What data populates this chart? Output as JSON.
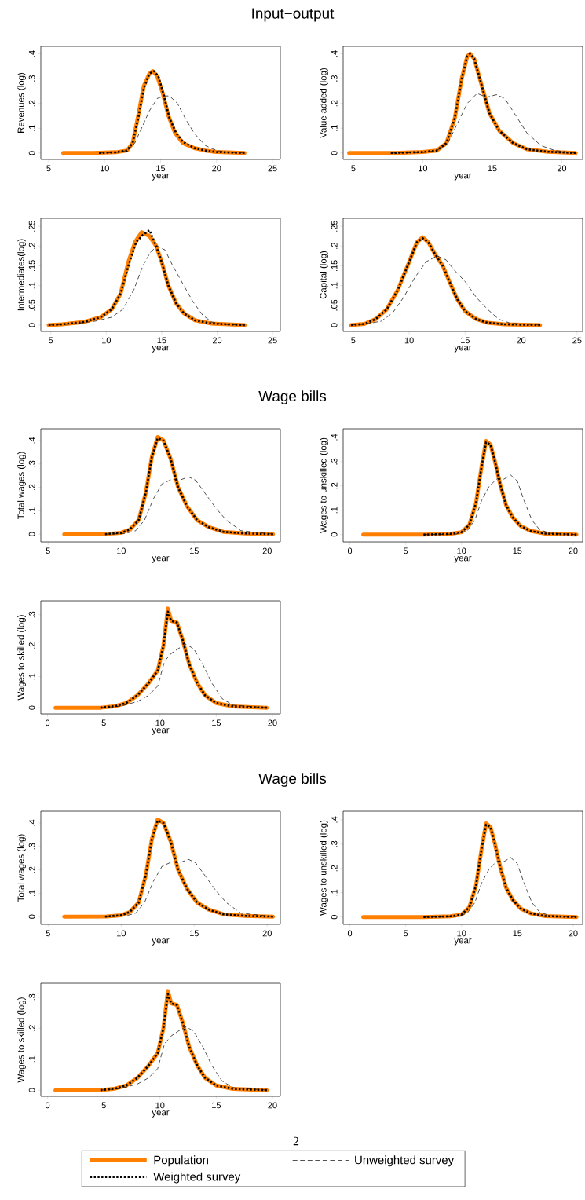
{
  "chart_data": [
    {
      "type": "line",
      "title": "Input−output",
      "xlabel": "year",
      "ylabel": "Revenues (log)",
      "xlim": [
        4.3,
        25.7
      ],
      "ylim": [
        -0.026,
        0.43
      ],
      "xticks": [
        5,
        10,
        15,
        20,
        25
      ],
      "yticks": [
        0,
        {
          "value": 0.1,
          "label": ".1"
        },
        {
          "value": 0.2,
          "label": ".2"
        },
        {
          "value": 0.3,
          "label": ".3"
        },
        {
          "value": 0.4,
          "label": ".4"
        }
      ],
      "series": [
        {
          "color": "#ff7f00",
          "line_style": "solid",
          "x": [
            6.3,
            9,
            11,
            12,
            12.5,
            13,
            13.5,
            14,
            14.3,
            14.7,
            15.2,
            15.7,
            16.3,
            17,
            18,
            19,
            20,
            22.5
          ],
          "values": [
            0,
            0,
            0.003,
            0.01,
            0.04,
            0.15,
            0.27,
            0.32,
            0.33,
            0.31,
            0.24,
            0.15,
            0.08,
            0.04,
            0.02,
            0.01,
            0.004,
            0
          ]
        },
        {
          "color": "#000000",
          "line_style": "dotted",
          "x": [
            9.5,
            11,
            12,
            12.5,
            13,
            13.5,
            14,
            14.4,
            14.8,
            15.3,
            15.8,
            16.4,
            17,
            18,
            19,
            20,
            22.5
          ],
          "values": [
            0,
            0.003,
            0.01,
            0.04,
            0.14,
            0.26,
            0.32,
            0.33,
            0.31,
            0.23,
            0.14,
            0.08,
            0.045,
            0.02,
            0.01,
            0.004,
            0
          ]
        },
        {
          "color": "#000000",
          "line_style": "dashed",
          "x": [
            9.5,
            11,
            12,
            12.7,
            13.3,
            14,
            14.7,
            15.3,
            15.8,
            16.5,
            17.2,
            18,
            19,
            20,
            21,
            22.5
          ],
          "values": [
            0,
            0.002,
            0.01,
            0.04,
            0.1,
            0.17,
            0.22,
            0.23,
            0.23,
            0.2,
            0.14,
            0.08,
            0.03,
            0.01,
            0.003,
            0
          ]
        }
      ]
    },
    {
      "type": "line",
      "xlabel": "year",
      "ylabel": "Value added (log)",
      "xlim": [
        4.27,
        21.5
      ],
      "ylim": [
        -0.026,
        0.43
      ],
      "xticks": [
        5,
        10,
        15,
        20
      ],
      "yticks": [
        0,
        {
          "value": 0.1,
          "label": ".1"
        },
        {
          "value": 0.2,
          "label": ".2"
        },
        {
          "value": 0.3,
          "label": ".3"
        },
        {
          "value": 0.4,
          "label": ".4"
        }
      ],
      "series": [
        {
          "color": "#ff7f00",
          "line_style": "solid",
          "x": [
            4.7,
            8,
            10,
            11,
            11.7,
            12.3,
            12.8,
            13.2,
            13.4,
            13.7,
            14.2,
            14.8,
            15.5,
            16.5,
            17.5,
            19,
            21
          ],
          "values": [
            0,
            0,
            0.004,
            0.01,
            0.04,
            0.14,
            0.3,
            0.39,
            0.4,
            0.38,
            0.28,
            0.16,
            0.09,
            0.04,
            0.015,
            0.005,
            0
          ]
        },
        {
          "color": "#000000",
          "line_style": "dotted",
          "x": [
            7.7,
            10,
            11,
            11.7,
            12.3,
            12.8,
            13.2,
            13.4,
            13.7,
            14.2,
            14.8,
            15.5,
            16.5,
            17.5,
            19,
            21
          ],
          "values": [
            0,
            0.004,
            0.01,
            0.04,
            0.14,
            0.3,
            0.39,
            0.4,
            0.38,
            0.28,
            0.16,
            0.09,
            0.04,
            0.015,
            0.005,
            0
          ]
        },
        {
          "color": "#000000",
          "line_style": "dashed",
          "x": [
            7.7,
            10,
            11,
            11.8,
            12.5,
            13.2,
            13.9,
            14.6,
            15.3,
            15.9,
            16.7,
            17.5,
            18.5,
            19.5,
            21
          ],
          "values": [
            0,
            0.002,
            0.01,
            0.04,
            0.12,
            0.2,
            0.24,
            0.225,
            0.235,
            0.22,
            0.15,
            0.08,
            0.03,
            0.01,
            0
          ]
        }
      ]
    },
    {
      "type": "line",
      "xlabel": "year",
      "ylabel": "Intermediates(log)",
      "xlim": [
        4.1,
        25.7
      ],
      "ylim": [
        -0.016,
        0.27
      ],
      "xticks": [
        5,
        10,
        15,
        20,
        25
      ],
      "yticks": [
        0,
        {
          "value": 0.05,
          "label": ".05"
        },
        {
          "value": 0.1,
          "label": ".1"
        },
        {
          "value": 0.15,
          "label": ".15"
        },
        {
          "value": 0.2,
          "label": ".2"
        },
        {
          "value": 0.25,
          "label": ".25"
        }
      ],
      "series": [
        {
          "color": "#ff7f00",
          "line_style": "solid",
          "x": [
            4.8,
            6,
            8,
            9.5,
            10.5,
            11.3,
            12,
            12.6,
            13.2,
            13.9,
            14.5,
            15,
            15.6,
            16.3,
            17,
            18,
            19.5,
            22.5
          ],
          "values": [
            0,
            0.002,
            0.008,
            0.02,
            0.04,
            0.08,
            0.16,
            0.21,
            0.235,
            0.225,
            0.2,
            0.16,
            0.1,
            0.055,
            0.03,
            0.012,
            0.004,
            0
          ]
        },
        {
          "color": "#000000",
          "line_style": "dotted",
          "x": [
            4.8,
            6,
            8,
            9.5,
            10.5,
            11.3,
            12,
            12.7,
            13.3,
            13.9,
            14.5,
            15,
            15.6,
            16.3,
            17,
            18,
            19.5,
            22.5
          ],
          "values": [
            0,
            0.002,
            0.008,
            0.02,
            0.04,
            0.08,
            0.15,
            0.21,
            0.228,
            0.24,
            0.2,
            0.16,
            0.1,
            0.055,
            0.03,
            0.012,
            0.004,
            0
          ]
        },
        {
          "color": "#000000",
          "line_style": "dashed",
          "x": [
            4.8,
            7,
            9,
            10.5,
            11.5,
            12.5,
            13.3,
            14,
            14.6,
            15.3,
            16,
            17,
            17.8,
            18.7,
            19.5,
            20.5,
            22.5
          ],
          "values": [
            0,
            0.003,
            0.01,
            0.02,
            0.04,
            0.09,
            0.15,
            0.185,
            0.2,
            0.19,
            0.15,
            0.1,
            0.06,
            0.025,
            0.008,
            0.002,
            0
          ]
        }
      ]
    },
    {
      "type": "line",
      "xlabel": "year",
      "ylabel": "Capital (log)",
      "xlim": [
        4.1,
        25.5
      ],
      "ylim": [
        -0.016,
        0.27
      ],
      "xticks": [
        5,
        10,
        15,
        20,
        25
      ],
      "yticks": [
        0,
        {
          "value": 0.05,
          "label": ".05"
        },
        {
          "value": 0.1,
          "label": ".1"
        },
        {
          "value": 0.15,
          "label": ".15"
        },
        {
          "value": 0.2,
          "label": ".2"
        },
        {
          "value": 0.25,
          "label": ".25"
        }
      ],
      "series": [
        {
          "color": "#ff7f00",
          "line_style": "solid",
          "x": [
            4.8,
            6,
            7,
            8,
            9,
            10,
            10.7,
            11.2,
            11.7,
            12.3,
            13,
            13.6,
            14.3,
            15,
            16,
            17,
            18.5,
            21.7
          ],
          "values": [
            0,
            0.003,
            0.015,
            0.04,
            0.09,
            0.16,
            0.21,
            0.222,
            0.21,
            0.18,
            0.15,
            0.11,
            0.065,
            0.035,
            0.015,
            0.006,
            0.002,
            0
          ]
        },
        {
          "color": "#000000",
          "line_style": "dotted",
          "x": [
            4.8,
            6,
            7,
            8,
            9,
            10,
            10.7,
            11.2,
            11.7,
            12.3,
            13,
            13.6,
            14.3,
            15,
            16,
            17,
            18.5,
            21.7
          ],
          "values": [
            0,
            0.003,
            0.015,
            0.04,
            0.09,
            0.16,
            0.21,
            0.22,
            0.21,
            0.18,
            0.15,
            0.11,
            0.065,
            0.035,
            0.015,
            0.006,
            0.002,
            0
          ]
        },
        {
          "color": "#000000",
          "line_style": "dashed",
          "x": [
            4.8,
            6,
            7.5,
            8.5,
            9.5,
            10.5,
            11.5,
            12.5,
            13.3,
            14,
            15,
            16,
            17,
            18,
            19,
            21.7
          ],
          "values": [
            0,
            0.002,
            0.01,
            0.03,
            0.07,
            0.12,
            0.16,
            0.175,
            0.165,
            0.14,
            0.11,
            0.07,
            0.04,
            0.015,
            0.005,
            0
          ]
        }
      ]
    },
    {
      "type": "line",
      "title": "Wage bills",
      "xlabel": "year",
      "ylabel": "Total wages (log)",
      "xlim": [
        4.5,
        20.9
      ],
      "ylim": [
        -0.033,
        0.45
      ],
      "xticks": [
        5,
        10,
        15,
        20
      ],
      "yticks": [
        0,
        {
          "value": 0.1,
          "label": ".1"
        },
        {
          "value": 0.2,
          "label": ".2"
        },
        {
          "value": 0.3,
          "label": ".3"
        },
        {
          "value": 0.4,
          "label": ".4"
        }
      ],
      "series": [
        {
          "color": "#ff7f00",
          "line_style": "solid",
          "x": [
            6.1,
            9,
            10,
            10.6,
            11.2,
            11.7,
            12.1,
            12.5,
            12.9,
            13.4,
            13.9,
            14.5,
            15.2,
            16,
            17,
            18.5,
            20.4
          ],
          "values": [
            0,
            0.001,
            0.006,
            0.02,
            0.06,
            0.18,
            0.33,
            0.415,
            0.4,
            0.32,
            0.2,
            0.12,
            0.06,
            0.03,
            0.01,
            0.003,
            0
          ]
        },
        {
          "color": "#000000",
          "line_style": "dotted",
          "x": [
            8.9,
            10,
            10.6,
            11.2,
            11.7,
            12.1,
            12.5,
            12.9,
            13.4,
            13.9,
            14.5,
            15.2,
            16,
            17,
            18.5,
            20.4
          ],
          "values": [
            0,
            0.006,
            0.02,
            0.06,
            0.18,
            0.33,
            0.41,
            0.4,
            0.32,
            0.2,
            0.12,
            0.06,
            0.03,
            0.01,
            0.003,
            0
          ]
        },
        {
          "color": "#000000",
          "line_style": "dashed",
          "x": [
            8.9,
            10.3,
            11,
            11.6,
            12.2,
            12.8,
            13.5,
            14,
            14.6,
            15.1,
            15.8,
            16.5,
            17.2,
            18.2,
            20.4
          ],
          "values": [
            0,
            0.003,
            0.015,
            0.06,
            0.15,
            0.215,
            0.235,
            0.23,
            0.245,
            0.23,
            0.17,
            0.11,
            0.06,
            0.015,
            0
          ]
        }
      ]
    },
    {
      "type": "line",
      "xlabel": "year",
      "ylabel": "Wages to unskilled (log)",
      "xlim": [
        -0.6,
        20.85
      ],
      "ylim": [
        -0.03,
        0.435
      ],
      "xticks": [
        0,
        5,
        10,
        15,
        20
      ],
      "yticks": [
        0,
        {
          "value": 0.1,
          "label": ".1"
        },
        {
          "value": 0.2,
          "label": ".2"
        },
        {
          "value": 0.3,
          "label": ".3"
        },
        {
          "value": 0.4,
          "label": ".4"
        }
      ],
      "series": [
        {
          "color": "#ff7f00",
          "line_style": "solid",
          "x": [
            1.2,
            6.6,
            9,
            10,
            10.7,
            11.3,
            11.8,
            12.2,
            12.6,
            13,
            13.5,
            14,
            14.6,
            15.3,
            16.2,
            17.5,
            20.3
          ],
          "values": [
            0,
            0,
            0.003,
            0.01,
            0.04,
            0.13,
            0.28,
            0.385,
            0.37,
            0.3,
            0.2,
            0.12,
            0.07,
            0.035,
            0.015,
            0.004,
            0
          ]
        },
        {
          "color": "#000000",
          "line_style": "dotted",
          "x": [
            6.6,
            9,
            10,
            10.7,
            11.3,
            11.8,
            12.2,
            12.6,
            13,
            13.5,
            14,
            14.6,
            15.3,
            16.2,
            17.5,
            20.3
          ],
          "values": [
            0,
            0.003,
            0.01,
            0.04,
            0.13,
            0.28,
            0.38,
            0.37,
            0.3,
            0.2,
            0.12,
            0.07,
            0.035,
            0.015,
            0.004,
            0
          ]
        },
        {
          "color": "#000000",
          "line_style": "dashed",
          "x": [
            6.6,
            9.5,
            10.5,
            11.2,
            11.8,
            12.5,
            13.2,
            13.8,
            14.4,
            15,
            15.6,
            16.3,
            17,
            18,
            20.3
          ],
          "values": [
            0,
            0.002,
            0.015,
            0.06,
            0.14,
            0.2,
            0.23,
            0.228,
            0.245,
            0.22,
            0.14,
            0.06,
            0.02,
            0.005,
            0
          ]
        }
      ]
    },
    {
      "type": "line",
      "xlabel": "year",
      "ylabel": "Wages to skilled (log)",
      "xlim": [
        -0.6,
        20.7
      ],
      "ylim": [
        -0.02,
        0.345
      ],
      "xticks": [
        0,
        5,
        10,
        15,
        20
      ],
      "yticks": [
        0,
        {
          "value": 0.1,
          "label": ".1"
        },
        {
          "value": 0.2,
          "label": ".2"
        },
        {
          "value": 0.3,
          "label": ".3"
        }
      ],
      "series": [
        {
          "color": "#ff7f00",
          "line_style": "solid",
          "x": [
            0.7,
            4.7,
            6,
            7,
            8,
            9,
            9.8,
            10.3,
            10.7,
            11,
            11.5,
            12,
            12.6,
            13.3,
            14,
            15,
            16.5,
            19.5
          ],
          "values": [
            0,
            0,
            0.005,
            0.015,
            0.04,
            0.08,
            0.12,
            0.2,
            0.32,
            0.28,
            0.275,
            0.22,
            0.14,
            0.08,
            0.04,
            0.015,
            0.004,
            0
          ]
        },
        {
          "color": "#000000",
          "line_style": "dotted",
          "x": [
            4.7,
            6,
            7,
            8,
            9,
            9.8,
            10.3,
            10.7,
            11,
            11.5,
            12,
            12.6,
            13.3,
            14,
            15,
            16.5,
            19.5
          ],
          "values": [
            0,
            0.005,
            0.015,
            0.04,
            0.08,
            0.12,
            0.2,
            0.31,
            0.28,
            0.275,
            0.22,
            0.14,
            0.08,
            0.04,
            0.015,
            0.004,
            0
          ]
        },
        {
          "color": "#000000",
          "line_style": "dashed",
          "x": [
            4.7,
            6.5,
            8,
            9,
            9.8,
            10.4,
            11,
            11.6,
            12.3,
            13,
            13.8,
            14.6,
            15.5,
            16.5,
            19.5
          ],
          "values": [
            0,
            0.005,
            0.02,
            0.04,
            0.07,
            0.15,
            0.175,
            0.19,
            0.205,
            0.19,
            0.14,
            0.08,
            0.03,
            0.008,
            0
          ]
        }
      ]
    },
    {
      "type": "line",
      "title": "Wage bills",
      "xlabel": "year",
      "ylabel": "Total wages (log)",
      "xlim": [
        4.5,
        20.9
      ],
      "ylim": [
        -0.033,
        0.45
      ],
      "xticks": [
        5,
        10,
        15,
        20
      ],
      "yticks": [
        0,
        {
          "value": 0.1,
          "label": ".1"
        },
        {
          "value": 0.2,
          "label": ".2"
        },
        {
          "value": 0.3,
          "label": ".3"
        },
        {
          "value": 0.4,
          "label": ".4"
        }
      ],
      "series": [
        {
          "color": "#ff7f00",
          "line_style": "solid",
          "x": [
            6.1,
            9,
            10,
            10.6,
            11.2,
            11.7,
            12.1,
            12.5,
            12.9,
            13.4,
            13.9,
            14.5,
            15.2,
            16,
            17,
            18.5,
            20.4
          ],
          "values": [
            0,
            0.001,
            0.006,
            0.02,
            0.06,
            0.18,
            0.33,
            0.415,
            0.4,
            0.32,
            0.2,
            0.12,
            0.06,
            0.03,
            0.01,
            0.003,
            0
          ]
        },
        {
          "color": "#000000",
          "line_style": "dotted",
          "x": [
            8.9,
            10,
            10.6,
            11.2,
            11.7,
            12.1,
            12.5,
            12.9,
            13.4,
            13.9,
            14.5,
            15.2,
            16,
            17,
            18.5,
            20.4
          ],
          "values": [
            0,
            0.006,
            0.02,
            0.06,
            0.18,
            0.33,
            0.41,
            0.4,
            0.32,
            0.2,
            0.12,
            0.06,
            0.03,
            0.01,
            0.003,
            0
          ]
        },
        {
          "color": "#000000",
          "line_style": "dashed",
          "x": [
            8.9,
            10.3,
            11,
            11.6,
            12.2,
            12.8,
            13.5,
            14,
            14.6,
            15.1,
            15.8,
            16.5,
            17.2,
            18.2,
            20.4
          ],
          "values": [
            0,
            0.003,
            0.015,
            0.06,
            0.15,
            0.215,
            0.235,
            0.23,
            0.245,
            0.23,
            0.17,
            0.11,
            0.06,
            0.015,
            0
          ]
        }
      ]
    },
    {
      "type": "line",
      "xlabel": "year",
      "ylabel": "Wages to unskilled (log)",
      "xlim": [
        -0.6,
        20.85
      ],
      "ylim": [
        -0.03,
        0.435
      ],
      "xticks": [
        0,
        5,
        10,
        15,
        20
      ],
      "yticks": [
        0,
        {
          "value": 0.1,
          "label": ".1"
        },
        {
          "value": 0.2,
          "label": ".2"
        },
        {
          "value": 0.3,
          "label": ".3"
        },
        {
          "value": 0.4,
          "label": ".4"
        }
      ],
      "series": [
        {
          "color": "#ff7f00",
          "line_style": "solid",
          "x": [
            1.2,
            6.6,
            9,
            10,
            10.7,
            11.3,
            11.8,
            12.2,
            12.6,
            13,
            13.5,
            14,
            14.6,
            15.3,
            16.2,
            17.5,
            20.3
          ],
          "values": [
            0,
            0,
            0.003,
            0.01,
            0.04,
            0.13,
            0.28,
            0.385,
            0.37,
            0.3,
            0.2,
            0.12,
            0.07,
            0.035,
            0.015,
            0.004,
            0
          ]
        },
        {
          "color": "#000000",
          "line_style": "dotted",
          "x": [
            6.6,
            9,
            10,
            10.7,
            11.3,
            11.8,
            12.2,
            12.6,
            13,
            13.5,
            14,
            14.6,
            15.3,
            16.2,
            17.5,
            20.3
          ],
          "values": [
            0,
            0.003,
            0.01,
            0.04,
            0.13,
            0.28,
            0.38,
            0.37,
            0.3,
            0.2,
            0.12,
            0.07,
            0.035,
            0.015,
            0.004,
            0
          ]
        },
        {
          "color": "#000000",
          "line_style": "dashed",
          "x": [
            6.6,
            9.5,
            10.5,
            11.2,
            11.8,
            12.5,
            13.2,
            13.8,
            14.4,
            15,
            15.6,
            16.3,
            17,
            18,
            20.3
          ],
          "values": [
            0,
            0.002,
            0.015,
            0.06,
            0.14,
            0.2,
            0.23,
            0.228,
            0.245,
            0.22,
            0.14,
            0.06,
            0.02,
            0.005,
            0
          ]
        }
      ]
    },
    {
      "type": "line",
      "xlabel": "year",
      "ylabel": "Wages to skilled (log)",
      "xlim": [
        -0.6,
        20.7
      ],
      "ylim": [
        -0.02,
        0.345
      ],
      "xticks": [
        0,
        5,
        10,
        15,
        20
      ],
      "yticks": [
        0,
        {
          "value": 0.1,
          "label": ".1"
        },
        {
          "value": 0.2,
          "label": ".2"
        },
        {
          "value": 0.3,
          "label": ".3"
        }
      ],
      "legend": "bottom",
      "annotations": [
        "2"
      ],
      "series": [
        {
          "name": "Population",
          "color": "#ff7f00",
          "line_style": "solid",
          "x": [
            0.7,
            4.7,
            6,
            7,
            8,
            9,
            9.8,
            10.3,
            10.7,
            11,
            11.5,
            12,
            12.6,
            13.3,
            14,
            15,
            16.5,
            19.5
          ],
          "values": [
            0,
            0,
            0.005,
            0.015,
            0.04,
            0.08,
            0.12,
            0.2,
            0.32,
            0.28,
            0.275,
            0.22,
            0.14,
            0.08,
            0.04,
            0.015,
            0.004,
            0
          ]
        },
        {
          "name": "Weighted survey",
          "color": "#000000",
          "line_style": "dotted",
          "x": [
            4.7,
            6,
            7,
            8,
            9,
            9.8,
            10.3,
            10.7,
            11,
            11.5,
            12,
            12.6,
            13.3,
            14,
            15,
            16.5,
            19.5
          ],
          "values": [
            0,
            0.005,
            0.015,
            0.04,
            0.08,
            0.12,
            0.2,
            0.31,
            0.28,
            0.275,
            0.22,
            0.14,
            0.08,
            0.04,
            0.015,
            0.004,
            0
          ]
        },
        {
          "name": "Unweighted survey",
          "color": "#000000",
          "line_style": "dashed",
          "x": [
            4.7,
            6.5,
            8,
            9,
            9.8,
            10.4,
            11,
            11.6,
            12.3,
            13,
            13.8,
            14.6,
            15.5,
            16.5,
            19.5
          ],
          "values": [
            0,
            0.005,
            0.02,
            0.04,
            0.07,
            0.15,
            0.175,
            0.19,
            0.205,
            0.19,
            0.14,
            0.08,
            0.03,
            0.008,
            0
          ]
        }
      ]
    }
  ]
}
